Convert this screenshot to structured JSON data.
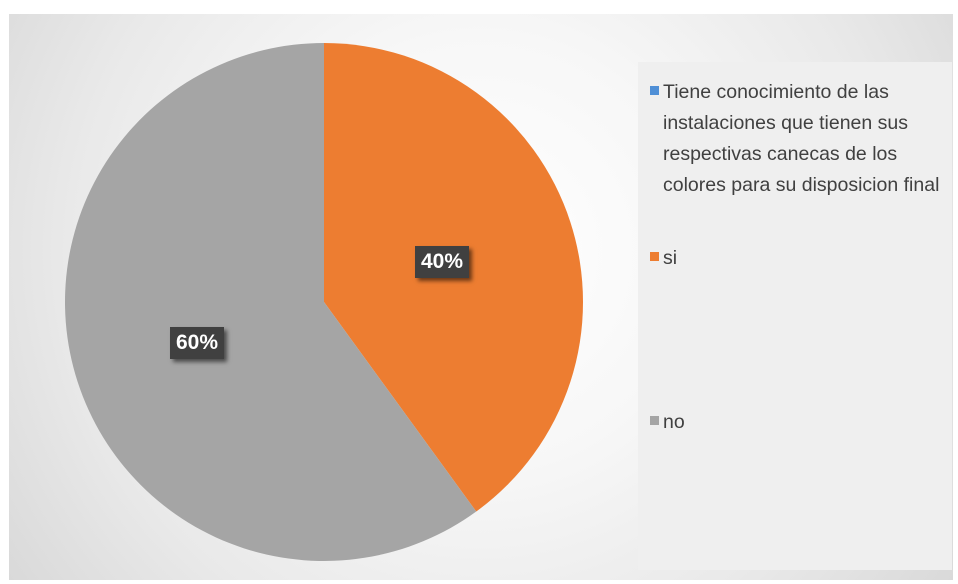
{
  "chart_data": {
    "type": "pie",
    "title": "",
    "categories": [
      "Tiene conocimiento de las instalaciones que tienen sus respectivas canecas de los colores para su disposicion final",
      "si",
      "no"
    ],
    "values": [
      0,
      40,
      60
    ],
    "data_labels": [
      "",
      "40%",
      "60%"
    ],
    "colors": [
      "#4f8fd6",
      "#ed7d31",
      "#a5a5a5"
    ],
    "legend_position": "right"
  }
}
